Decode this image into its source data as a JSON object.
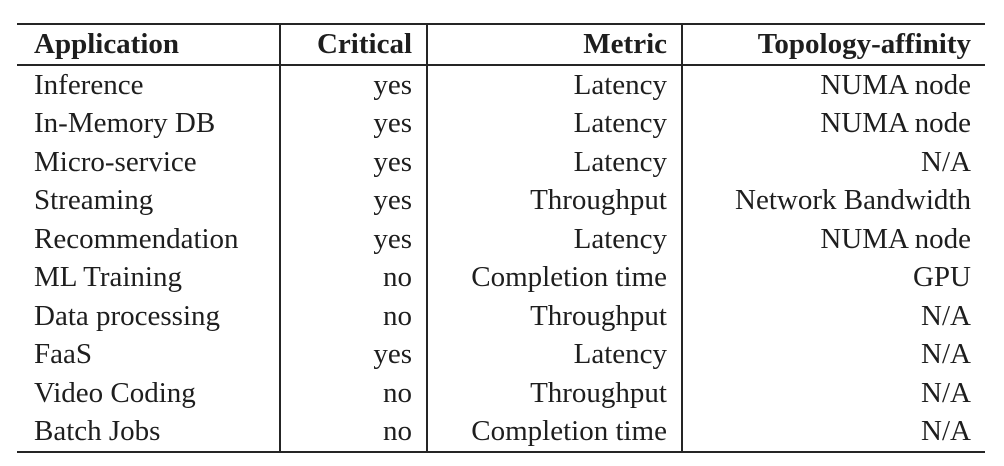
{
  "table": {
    "columns": [
      "Application",
      "Critical",
      "Metric",
      "Topology-affinity"
    ],
    "rows": [
      [
        "Inference",
        "yes",
        "Latency",
        "NUMA node"
      ],
      [
        "In-Memory DB",
        "yes",
        "Latency",
        "NUMA node"
      ],
      [
        "Micro-service",
        "yes",
        "Latency",
        "N/A"
      ],
      [
        "Streaming",
        "yes",
        "Throughput",
        "Network Bandwidth"
      ],
      [
        "Recommendation",
        "yes",
        "Latency",
        "NUMA node"
      ],
      [
        "ML Training",
        "no",
        "Completion time",
        "GPU"
      ],
      [
        "Data processing",
        "no",
        "Throughput",
        "N/A"
      ],
      [
        "FaaS",
        "yes",
        "Latency",
        "N/A"
      ],
      [
        "Video Coding",
        "no",
        "Throughput",
        "N/A"
      ],
      [
        "Batch Jobs",
        "no",
        "Completion time",
        "N/A"
      ]
    ],
    "colors": {
      "text": "#1e1e1e",
      "rule": "#252525",
      "background": "#ffffff"
    }
  }
}
